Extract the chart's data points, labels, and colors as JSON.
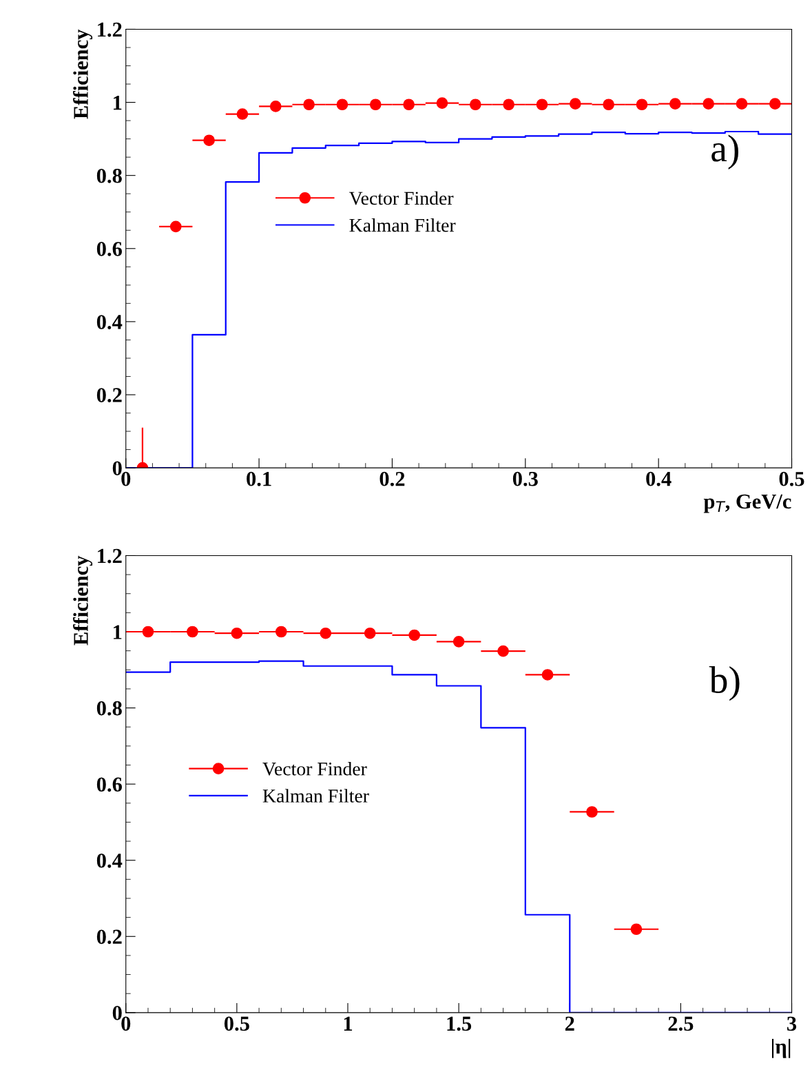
{
  "chart_data": [
    {
      "type": "scatter",
      "ylabel": "Efficiency",
      "xlabel": "p$_{T}$, GeV/c",
      "annotations": [
        "a)"
      ],
      "xlim": [
        0,
        0.5
      ],
      "ylim": [
        0,
        1.2
      ],
      "xticks": [
        0,
        0.1,
        0.2,
        0.3,
        0.4,
        0.5
      ],
      "yticks": [
        0,
        0.2,
        0.4,
        0.6,
        0.8,
        1,
        1.2
      ],
      "grid": false,
      "legend": "center left",
      "series": [
        {
          "name": "Vector Finder",
          "color": "#ff0000",
          "marker": "circle",
          "x": [
            0.0125,
            0.0375,
            0.0625,
            0.0875,
            0.1125,
            0.1375,
            0.1625,
            0.1875,
            0.2125,
            0.2375,
            0.2625,
            0.2875,
            0.3125,
            0.3375,
            0.3625,
            0.3875,
            0.4125,
            0.4375,
            0.4625,
            0.4875
          ],
          "values": [
            0,
            0.66,
            0.896,
            0.968,
            0.989,
            0.994,
            0.994,
            0.994,
            0.994,
            0.998,
            0.994,
            0.994,
            0.994,
            0.996,
            0.994,
            0.994,
            0.996,
            0.996,
            0.996,
            0.996
          ],
          "xerrors": [
            null,
            0.0125,
            0.0125,
            0.0125,
            0.0125,
            0.0125,
            0.0125,
            0.0125,
            0.0125,
            0.0125,
            0.0125,
            0.0125,
            0.0125,
            0.0125,
            0.0125,
            0.0125,
            0.0125,
            0.0125,
            0.0125,
            0.0125
          ],
          "errors": [
            [
              0,
              0.11
            ],
            null,
            null,
            null,
            null,
            null,
            null,
            null,
            null,
            null,
            null,
            null,
            null,
            null,
            null,
            null,
            null,
            null,
            null,
            null
          ]
        },
        {
          "name": "Kalman Filter",
          "type": "step",
          "color": "#0000ff",
          "x": [
            0,
            0.025,
            0.05,
            0.075,
            0.1,
            0.125,
            0.15,
            0.175,
            0.2,
            0.225,
            0.25,
            0.275,
            0.3,
            0.325,
            0.35,
            0.375,
            0.4,
            0.425,
            0.45,
            0.475,
            0.5
          ],
          "values": [
            0,
            0,
            0.364,
            0.782,
            0.862,
            0.875,
            0.882,
            0.888,
            0.893,
            0.89,
            0.9,
            0.905,
            0.908,
            0.913,
            0.918,
            0.914,
            0.918,
            0.916,
            0.92,
            0.913,
            0.913
          ]
        }
      ]
    },
    {
      "type": "scatter",
      "ylabel": "Efficiency",
      "xlabel": "|η|",
      "annotations": [
        "b)"
      ],
      "xlim": [
        0,
        3
      ],
      "ylim": [
        0,
        1.2
      ],
      "xticks": [
        0,
        0.5,
        1,
        1.5,
        2,
        2.5,
        3
      ],
      "yticks": [
        0,
        0.2,
        0.4,
        0.6,
        0.8,
        1,
        1.2
      ],
      "grid": false,
      "legend": "center left",
      "series": [
        {
          "name": "Vector Finder",
          "color": "#ff0000",
          "marker": "circle",
          "x": [
            0.1,
            0.3,
            0.5,
            0.7,
            0.9,
            1.1,
            1.3,
            1.5,
            1.7,
            1.9,
            2.1,
            2.3
          ],
          "values": [
            1.0,
            1.0,
            0.996,
            1.0,
            0.996,
            0.996,
            0.991,
            0.974,
            0.949,
            0.887,
            0.527,
            0.219
          ],
          "xerrors": [
            0.1,
            0.1,
            0.1,
            0.1,
            0.1,
            0.1,
            0.1,
            0.1,
            0.1,
            0.1,
            0.1,
            0.1
          ]
        },
        {
          "name": "Kalman Filter",
          "type": "step",
          "color": "#0000ff",
          "x": [
            0,
            0.2,
            0.4,
            0.6,
            0.8,
            1.0,
            1.2,
            1.4,
            1.6,
            1.8,
            2.0,
            3.0
          ],
          "values": [
            0.894,
            0.92,
            0.92,
            0.923,
            0.91,
            0.91,
            0.887,
            0.858,
            0.748,
            0.257,
            0,
            0
          ]
        }
      ]
    }
  ]
}
